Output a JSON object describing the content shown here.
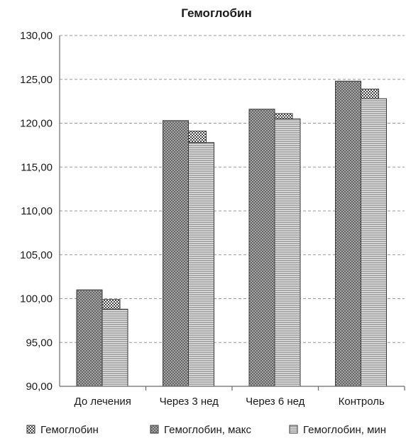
{
  "chart_data": {
    "type": "bar",
    "title": "Гемоглобин",
    "categories": [
      "До лечения",
      "Через 3 нед",
      "Через 6 нед",
      "Контроль"
    ],
    "series": [
      {
        "name": "Гемоглобин, макс",
        "pattern": "crosshatch-dark",
        "values": [
          101.0,
          120.3,
          121.6,
          124.8
        ]
      },
      {
        "name": "Гемоглобин",
        "pattern": "checker",
        "values": [
          99.9,
          119.1,
          121.1,
          123.9
        ]
      },
      {
        "name": "Гемоглобин, мин",
        "pattern": "horizontal-lines",
        "values": [
          98.8,
          117.8,
          120.5,
          122.8
        ]
      }
    ],
    "legend_order": [
      "Гемоглобин",
      "Гемоглобин, макс",
      "Гемоглобин, мин"
    ],
    "ylim": [
      90,
      130
    ],
    "yticks": [
      "90,00",
      "95,00",
      "100,00",
      "105,00",
      "110,00",
      "115,00",
      "120,00",
      "125,00",
      "130,00"
    ],
    "xlabel": "",
    "ylabel": "",
    "grid": true,
    "legend_position": "bottom"
  }
}
